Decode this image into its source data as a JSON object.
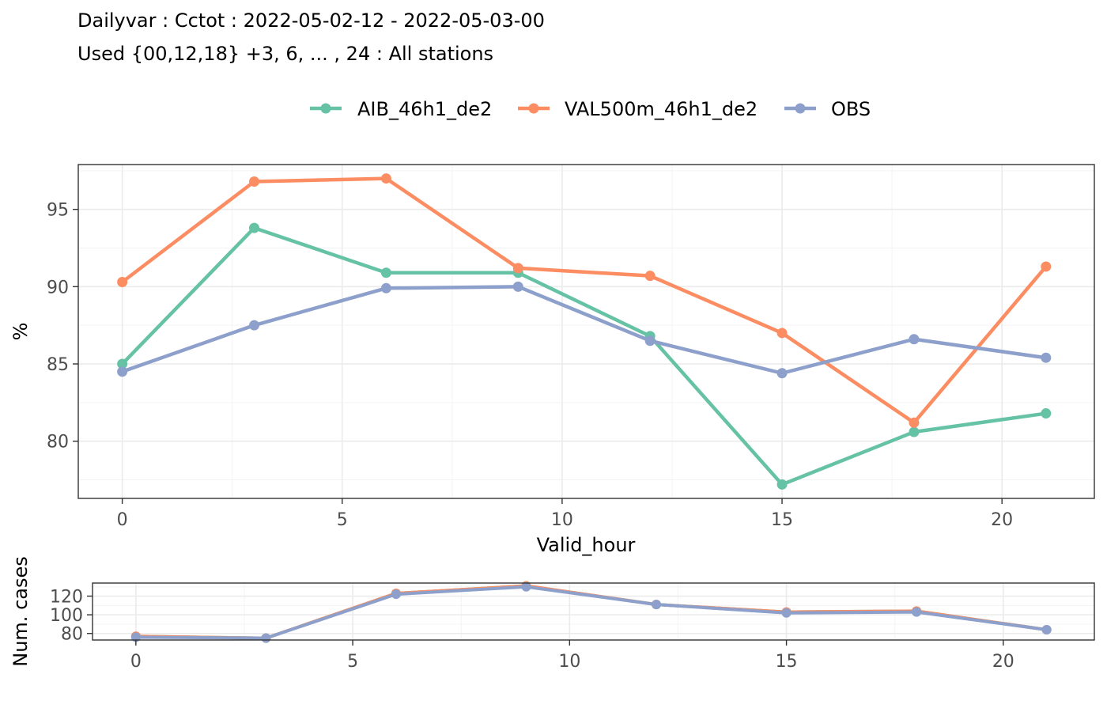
{
  "title": {
    "line1": "Dailyvar : Cctot : 2022-05-02-12 - 2022-05-03-00",
    "line2": "Used {00,12,18} +3, 6, ... , 24 : All stations"
  },
  "legend": {
    "placement": "top",
    "items": [
      {
        "label": "AIB_46h1_de2",
        "color": "#66c2a5"
      },
      {
        "label": "VAL500m_46h1_de2",
        "color": "#fc8d62"
      },
      {
        "label": "OBS",
        "color": "#8da0cb"
      }
    ]
  },
  "chart_data": [
    {
      "type": "line",
      "xlabel": "Valid_hour",
      "ylabel": "%",
      "x": [
        0,
        3,
        6,
        9,
        12,
        15,
        18,
        21
      ],
      "xlim": [
        -1,
        22.1
      ],
      "ylim": [
        76.3,
        97.9
      ],
      "xticks": [
        0,
        5,
        10,
        15,
        20
      ],
      "yticks": [
        80,
        85,
        90,
        95
      ],
      "grid": true,
      "series": [
        {
          "name": "AIB_46h1_de2",
          "color": "#66c2a5",
          "values": [
            85.0,
            93.8,
            90.9,
            90.9,
            86.8,
            77.2,
            80.6,
            81.8
          ]
        },
        {
          "name": "VAL500m_46h1_de2",
          "color": "#fc8d62",
          "values": [
            90.3,
            96.8,
            97.0,
            91.2,
            90.7,
            87.0,
            81.2,
            91.3
          ]
        },
        {
          "name": "OBS",
          "color": "#8da0cb",
          "values": [
            84.5,
            87.5,
            89.9,
            90.0,
            86.5,
            84.4,
            86.6,
            85.4
          ]
        }
      ]
    },
    {
      "type": "line",
      "xlabel": "",
      "ylabel": "Num. cases",
      "x": [
        0,
        3,
        6,
        9,
        12,
        15,
        18,
        21
      ],
      "xlim": [
        -1,
        22.1
      ],
      "ylim": [
        73,
        134
      ],
      "xticks": [
        0,
        5,
        10,
        15,
        20
      ],
      "yticks": [
        80,
        100,
        120
      ],
      "grid": true,
      "series": [
        {
          "name": "AIB_46h1_de2",
          "color": "#66c2a5",
          "values": [
            77,
            75,
            123,
            131,
            111,
            103,
            104,
            84
          ]
        },
        {
          "name": "VAL500m_46h1_de2",
          "color": "#fc8d62",
          "values": [
            77,
            75,
            123,
            131,
            111,
            103,
            104,
            84
          ]
        },
        {
          "name": "OBS",
          "color": "#8da0cb",
          "values": [
            76,
            75,
            122,
            130,
            111,
            102,
            103,
            84
          ]
        }
      ]
    }
  ]
}
